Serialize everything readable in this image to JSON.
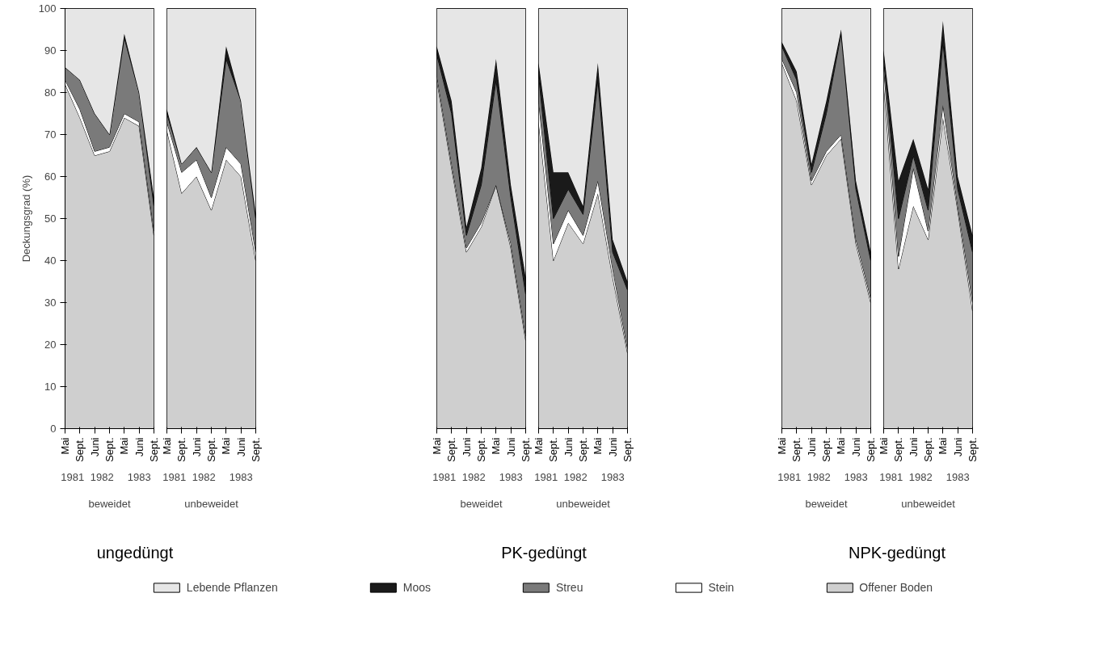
{
  "chart_data": [
    {
      "type": "area",
      "stacked": true,
      "title": "ungedüngt",
      "xlabel": "beweidet",
      "ylabel": "Deckungsgrad (%)",
      "categories": [
        "Mai",
        "Sept.",
        "Juni",
        "Sept.",
        "Mai",
        "Juni",
        "Sept."
      ],
      "annotations": [
        "1981",
        "1982",
        "1983"
      ],
      "ylim": [
        0,
        100
      ],
      "yticks": [
        0,
        10,
        20,
        30,
        40,
        50,
        60,
        70,
        80,
        90,
        100
      ],
      "legend": "bottom",
      "series": [
        {
          "name": "Offener Boden",
          "color": "#cfcfcf",
          "values": [
            82,
            74,
            65,
            66,
            74,
            72,
            46
          ]
        },
        {
          "name": "Stein",
          "color": "#ffffff",
          "values": [
            1,
            2,
            1,
            1,
            1,
            1,
            1
          ]
        },
        {
          "name": "Streu",
          "color": "#7a7a7a",
          "values": [
            3,
            7,
            9,
            3,
            18,
            7,
            6
          ]
        },
        {
          "name": "Moos",
          "color": "#1a1a1a",
          "values": [
            0,
            0,
            0,
            0,
            1,
            0,
            2
          ]
        },
        {
          "name": "Lebende Pflanzen",
          "color": "#e6e6e6",
          "values": [
            14,
            17,
            25,
            30,
            6,
            20,
            45
          ]
        }
      ]
    },
    {
      "type": "area",
      "stacked": true,
      "xlabel": "unbeweidet",
      "categories": [
        "Mai",
        "Sept.",
        "Juni",
        "Sept.",
        "Mai",
        "Juni",
        "Sept."
      ],
      "annotations": [
        "1981",
        "1982",
        "1983"
      ],
      "ylim": [
        0,
        100
      ],
      "tick_labels": "x",
      "series": [
        {
          "color": "#cfcfcf",
          "values": [
            71,
            56,
            60,
            52,
            64,
            60,
            40
          ]
        },
        {
          "color": "#ffffff",
          "values": [
            2,
            5,
            4,
            3,
            3,
            3,
            2
          ]
        },
        {
          "color": "#7a7a7a",
          "values": [
            2,
            2,
            3,
            6,
            21,
            15,
            8
          ]
        },
        {
          "color": "#1a1a1a",
          "values": [
            1,
            0,
            0,
            0,
            3,
            0,
            1
          ]
        },
        {
          "color": "#e6e6e6",
          "values": [
            24,
            37,
            33,
            39,
            9,
            22,
            49
          ]
        }
      ]
    },
    {
      "type": "area",
      "stacked": true,
      "title": "PK-gedüngt",
      "xlabel": "beweidet",
      "categories": [
        "Mai",
        "Sept.",
        "Juni",
        "Sept.",
        "Mai",
        "Juni",
        "Sept."
      ],
      "annotations": [
        "1981",
        "1982",
        "1983"
      ],
      "ylim": [
        0,
        100
      ],
      "tick_labels": "x",
      "series": [
        {
          "color": "#cfcfcf",
          "values": [
            83,
            62,
            42,
            48,
            58,
            43,
            21
          ]
        },
        {
          "color": "#ffffff",
          "values": [
            1,
            1,
            1,
            1,
            0,
            1,
            1
          ]
        },
        {
          "color": "#7a7a7a",
          "values": [
            5,
            12,
            3,
            9,
            25,
            11,
            10
          ]
        },
        {
          "color": "#1a1a1a",
          "values": [
            2,
            3,
            2,
            4,
            5,
            3,
            4
          ]
        },
        {
          "color": "#e6e6e6",
          "values": [
            9,
            22,
            52,
            38,
            12,
            42,
            64
          ]
        }
      ]
    },
    {
      "type": "area",
      "stacked": true,
      "xlabel": "unbeweidet",
      "categories": [
        "Mai",
        "Sept.",
        "Juni",
        "Sept.",
        "Mai",
        "Juni",
        "Sept."
      ],
      "annotations": [
        "1981",
        "1982",
        "1983"
      ],
      "ylim": [
        0,
        100
      ],
      "tick_labels": "x",
      "series": [
        {
          "color": "#cfcfcf",
          "values": [
            73,
            40,
            49,
            44,
            56,
            36,
            18
          ]
        },
        {
          "color": "#ffffff",
          "values": [
            5,
            4,
            3,
            2,
            3,
            2,
            1
          ]
        },
        {
          "color": "#7a7a7a",
          "values": [
            6,
            6,
            5,
            5,
            24,
            4,
            14
          ]
        },
        {
          "color": "#1a1a1a",
          "values": [
            3,
            11,
            4,
            2,
            4,
            3,
            2
          ]
        },
        {
          "color": "#e6e6e6",
          "values": [
            13,
            39,
            39,
            47,
            13,
            55,
            65
          ]
        }
      ]
    },
    {
      "type": "area",
      "stacked": true,
      "title": "NPK-gedüngt",
      "xlabel": "beweidet",
      "categories": [
        "Mai",
        "Sept.",
        "Juni",
        "Sept.",
        "Mai",
        "Juni",
        "Sept."
      ],
      "annotations": [
        "1981",
        "1982",
        "1983"
      ],
      "ylim": [
        0,
        100
      ],
      "tick_labels": "x",
      "series": [
        {
          "color": "#cfcfcf",
          "values": [
            87,
            78,
            58,
            65,
            69,
            44,
            30
          ]
        },
        {
          "color": "#ffffff",
          "values": [
            1,
            2,
            1,
            1,
            1,
            1,
            1
          ]
        },
        {
          "color": "#7a7a7a",
          "values": [
            3,
            3,
            2,
            9,
            24,
            12,
            9
          ]
        },
        {
          "color": "#1a1a1a",
          "values": [
            1,
            2,
            2,
            3,
            1,
            2,
            2
          ]
        },
        {
          "color": "#e6e6e6",
          "values": [
            8,
            15,
            37,
            22,
            5,
            41,
            58
          ]
        }
      ]
    },
    {
      "type": "area",
      "stacked": true,
      "xlabel": "unbeweidet",
      "categories": [
        "Mai",
        "Sept.",
        "Juni",
        "Sept.",
        "Mai",
        "Juni",
        "Sept."
      ],
      "annotations": [
        "1981",
        "1982",
        "1983"
      ],
      "ylim": [
        0,
        100
      ],
      "tick_labels": "x",
      "series": [
        {
          "color": "#cfcfcf",
          "values": [
            82,
            38,
            53,
            45,
            74,
            52,
            28
          ]
        },
        {
          "color": "#ffffff",
          "values": [
            4,
            3,
            9,
            2,
            3,
            1,
            2
          ]
        },
        {
          "color": "#7a7a7a",
          "values": [
            2,
            9,
            3,
            5,
            15,
            4,
            12
          ]
        },
        {
          "color": "#1a1a1a",
          "values": [
            2,
            9,
            4,
            5,
            5,
            3,
            4
          ]
        },
        {
          "color": "#e6e6e6",
          "values": [
            10,
            41,
            31,
            43,
            3,
            40,
            54
          ]
        }
      ]
    }
  ]
}
